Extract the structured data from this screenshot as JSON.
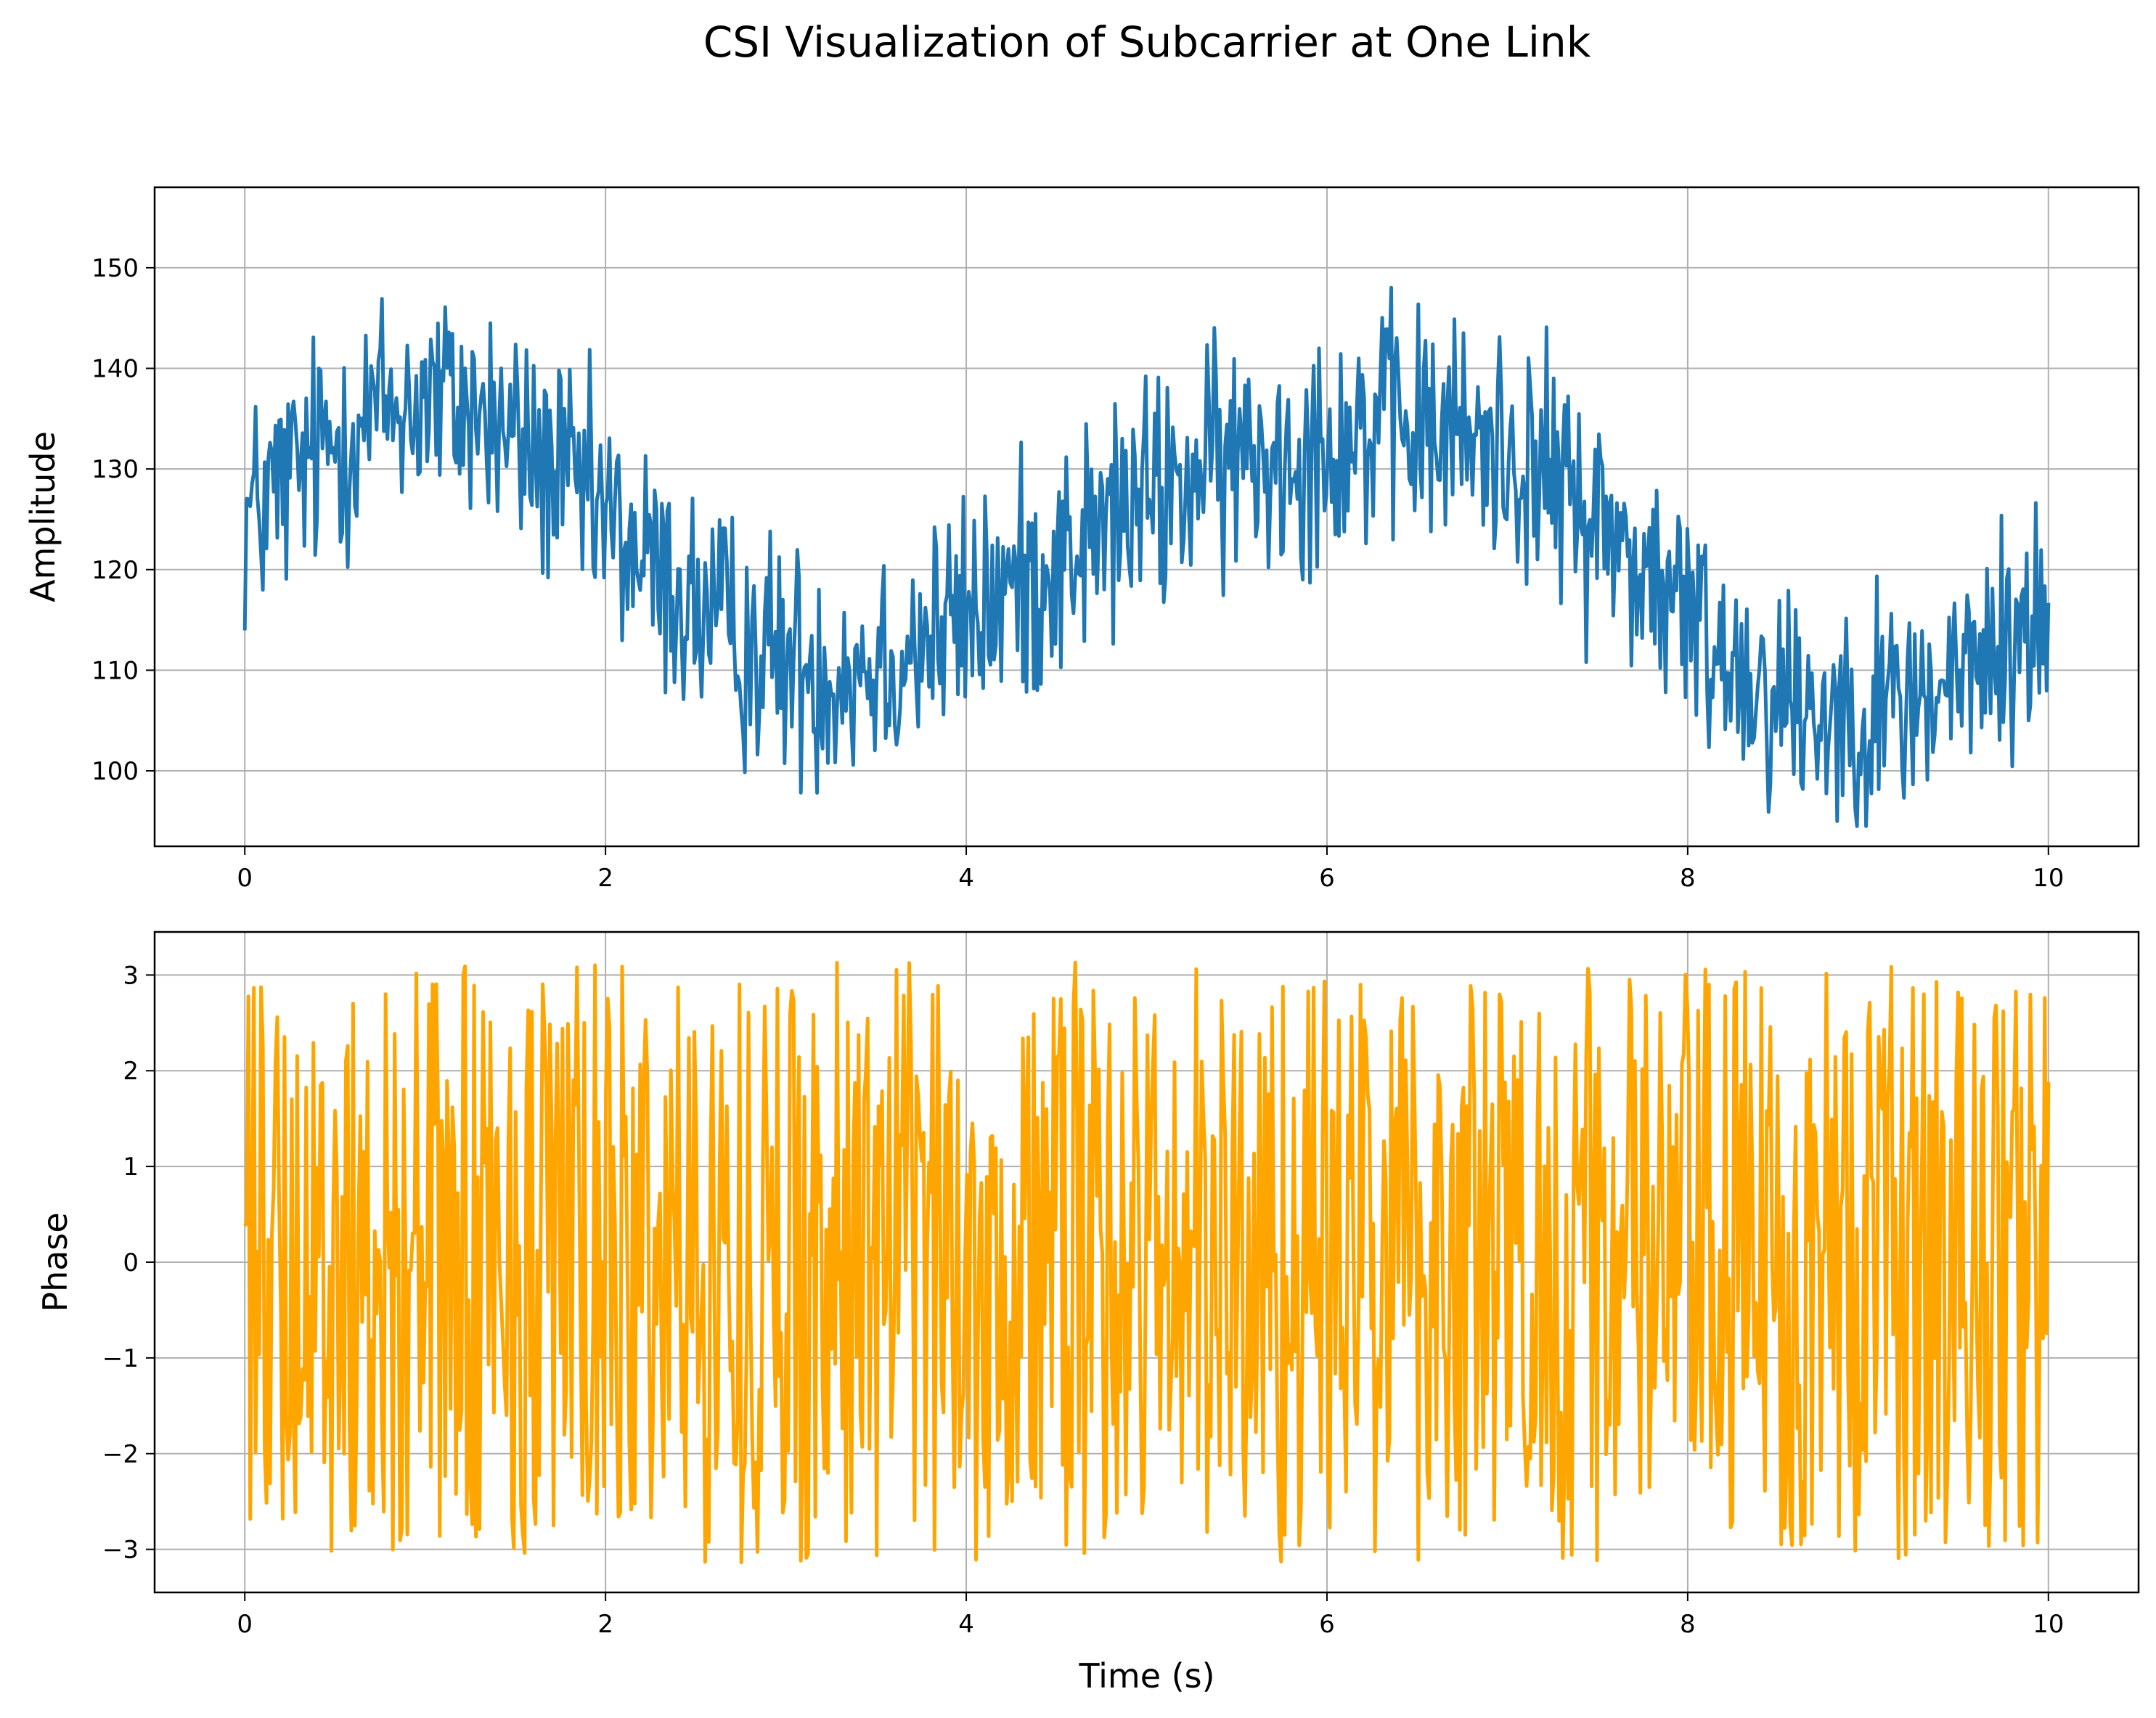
{
  "figure_title": "CSI Visualization of Subcarrier at One Link",
  "chart_data": [
    {
      "type": "line",
      "title": "",
      "xlabel": "",
      "ylabel": "Amplitude",
      "xlim": [
        -0.5,
        10.5
      ],
      "ylim": [
        92.5,
        158
      ],
      "xticks": [
        0,
        2,
        4,
        6,
        8,
        10
      ],
      "yticks": [
        100,
        110,
        120,
        130,
        140,
        150
      ],
      "grid": true,
      "legend": "none",
      "color": "#1f77b4",
      "series": [
        {
          "x": [
            0,
            0.25,
            0.5,
            0.75,
            1,
            1.25,
            1.5,
            1.75,
            2,
            2.25,
            2.5,
            2.75,
            3,
            3.25,
            3.5,
            3.75,
            4,
            4.25,
            4.5,
            4.75,
            5,
            5.25,
            5.5,
            5.75,
            6,
            6.25,
            6.5,
            6.75,
            7,
            7.25,
            7.5,
            7.75,
            8,
            8.25,
            8.5,
            8.75,
            9,
            9.25,
            9.5,
            9.75,
            10
          ],
          "y": [
            125,
            129,
            133,
            136,
            137,
            136,
            133,
            129,
            125,
            120,
            116,
            113,
            111,
            110,
            111,
            113,
            115,
            118,
            121,
            124,
            127,
            129,
            131,
            132,
            133,
            134,
            134,
            133,
            132,
            129,
            125,
            120,
            115,
            111,
            108,
            106,
            106,
            107,
            109,
            112,
            116
          ],
          "noise_range": [
            -18,
            18
          ],
          "samples": 1000
        }
      ]
    },
    {
      "type": "line",
      "title": "",
      "xlabel": "Time (s)",
      "ylabel": "Phase",
      "xlim": [
        -0.5,
        10.5
      ],
      "ylim": [
        -3.45,
        3.45
      ],
      "xticks": [
        0,
        2,
        4,
        6,
        8,
        10
      ],
      "yticks": [
        -3,
        -2,
        -1,
        0,
        1,
        2,
        3
      ],
      "ytick_labels": [
        "−3",
        "−2",
        "−1",
        "0",
        "1",
        "2",
        "3"
      ],
      "grid": true,
      "legend": "none",
      "color": "#ffa500",
      "series": [
        {
          "x_range": [
            0,
            10
          ],
          "y_range": [
            -3.14,
            3.14
          ],
          "distribution": "uniform random",
          "samples": 1000
        }
      ]
    }
  ]
}
